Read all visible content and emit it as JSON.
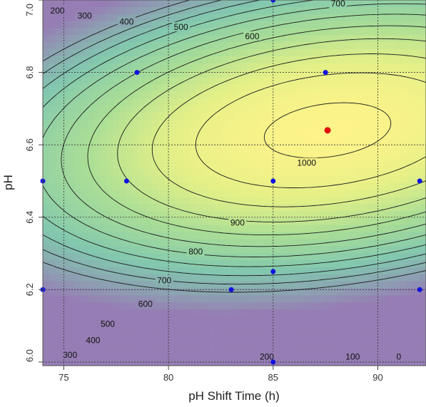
{
  "chart_data": {
    "type": "contour",
    "xlabel": "pH Shift Time (h)",
    "ylabel": "pH",
    "xlim": [
      74,
      92.3
    ],
    "ylim": [
      5.99,
      7.0
    ],
    "x_ticks": [
      75,
      80,
      85,
      90
    ],
    "y_ticks": [
      6.0,
      6.2,
      6.4,
      6.6,
      6.8,
      7.0
    ],
    "x_tick_labels": [
      "75",
      "80",
      "85",
      "90"
    ],
    "y_tick_labels": [
      "6.0",
      "6.2",
      "6.4",
      "6.6",
      "6.8",
      "7.0"
    ],
    "grid": true,
    "grid_style": "dotted",
    "contour_levels": [
      0,
      100,
      200,
      300,
      400,
      500,
      600,
      700,
      800,
      900,
      1000
    ],
    "contour_labels": [
      {
        "text": "200",
        "x": 74.7,
        "y": 6.97
      },
      {
        "text": "300",
        "x": 76.0,
        "y": 6.957
      },
      {
        "text": "400",
        "x": 78.0,
        "y": 6.94
      },
      {
        "text": "500",
        "x": 80.6,
        "y": 6.925
      },
      {
        "text": "600",
        "x": 84.0,
        "y": 6.9
      },
      {
        "text": "700",
        "x": 88.1,
        "y": 6.99
      },
      {
        "text": "1000",
        "x": 86.6,
        "y": 6.55
      },
      {
        "text": "900",
        "x": 83.3,
        "y": 6.385
      },
      {
        "text": "800",
        "x": 81.3,
        "y": 6.305
      },
      {
        "text": "700",
        "x": 79.8,
        "y": 6.225
      },
      {
        "text": "600",
        "x": 78.9,
        "y": 6.16
      },
      {
        "text": "500",
        "x": 77.1,
        "y": 6.105
      },
      {
        "text": "400",
        "x": 76.4,
        "y": 6.06
      },
      {
        "text": "300",
        "x": 75.3,
        "y": 6.02
      },
      {
        "text": "200",
        "x": 84.7,
        "y": 6.015
      },
      {
        "text": "100",
        "x": 88.8,
        "y": 6.015
      },
      {
        "text": "0",
        "x": 91.0,
        "y": 6.015
      }
    ],
    "design_points": [
      {
        "x": 85.0,
        "y": 7.0
      },
      {
        "x": 78.5,
        "y": 6.8
      },
      {
        "x": 87.5,
        "y": 6.8
      },
      {
        "x": 74.0,
        "y": 6.5
      },
      {
        "x": 78.0,
        "y": 6.5
      },
      {
        "x": 85.0,
        "y": 6.5
      },
      {
        "x": 92.0,
        "y": 6.5
      },
      {
        "x": 85.0,
        "y": 6.25
      },
      {
        "x": 74.0,
        "y": 6.2
      },
      {
        "x": 83.0,
        "y": 6.2
      },
      {
        "x": 92.0,
        "y": 6.2
      },
      {
        "x": 85.0,
        "y": 6.0
      }
    ],
    "optimum_point": {
      "x": 87.6,
      "y": 6.64
    },
    "colors": {
      "design_point": "#1010e0",
      "optimum_point": "#e01010",
      "contour_line": "#1a1a1a",
      "grid": "#333333",
      "surface_high": "#fbf38a",
      "surface_mid": "#8fd3a0",
      "surface_low": "#9b84b4"
    }
  }
}
